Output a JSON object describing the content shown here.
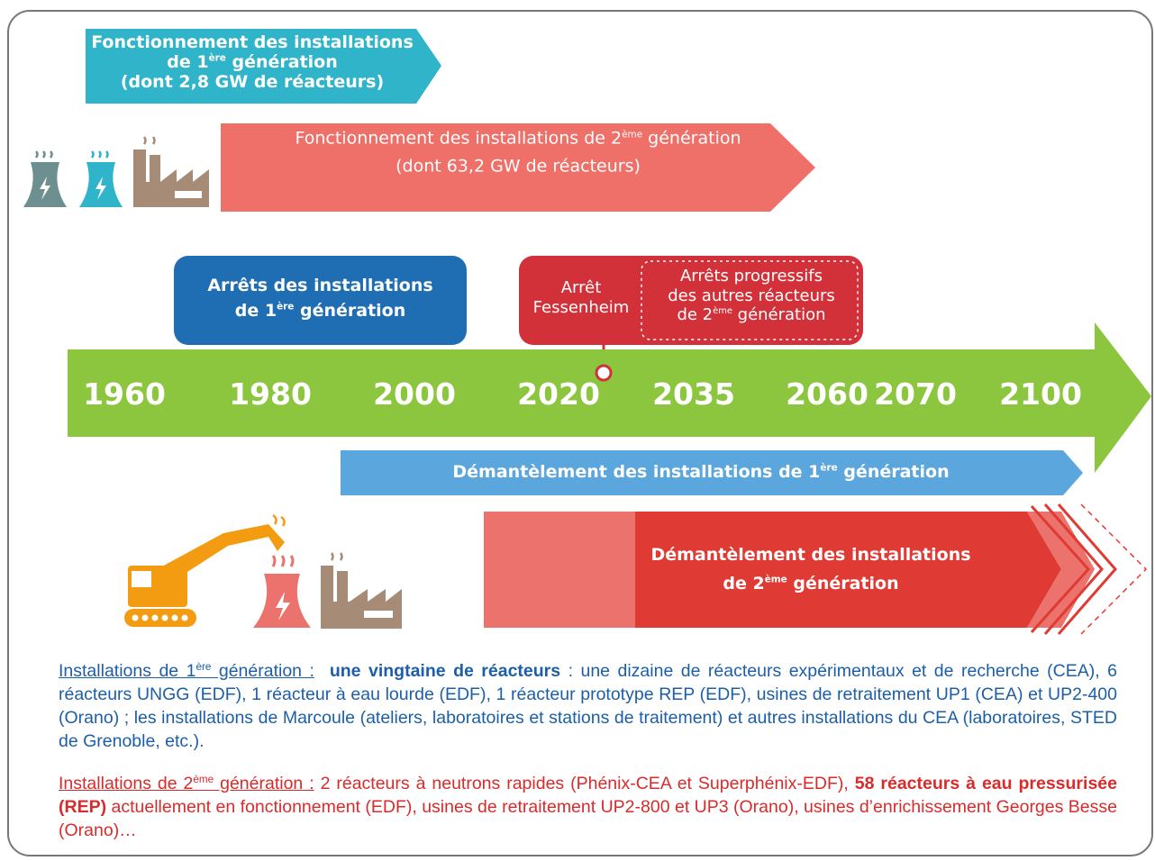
{
  "gen1_operation": {
    "line1": "Fonctionnement des installations",
    "line2": "de 1",
    "line2_sup": "ère",
    "line2_end": " génération",
    "line3": "(dont 2,8 GW de réacteurs)"
  },
  "gen2_operation": {
    "line1": "Fonctionnement des installations de 2",
    "line1_sup": "ème",
    "line1_end": " génération",
    "line2": "(dont 63,2 GW de réacteurs)"
  },
  "gen1_shutdown": {
    "line1": "Arrêts des installations",
    "line2": "de 1",
    "line2_sup": "ère",
    "line2_end": " génération"
  },
  "fessenheim": {
    "line1": "Arrêt",
    "line2": "Fessenheim"
  },
  "gen2_shutdown": {
    "line1": "Arrêts progressifs",
    "line2": "des autres réacteurs",
    "line3": "de 2",
    "line3_sup": "ème",
    "line3_end": " génération"
  },
  "timeline": {
    "years": [
      1960,
      1980,
      2000,
      2020,
      2035,
      2060,
      2070,
      2100
    ]
  },
  "gen1_dismantling": {
    "text": "Démantèlement des installations de 1",
    "sup": "ère",
    "end": " génération"
  },
  "gen2_dismantling": {
    "line1": "Démantèlement des installations",
    "line2": "de 2",
    "line2_sup": "ème",
    "line2_end": " génération"
  },
  "notes": [
    {
      "label": "Installations de 1",
      "label_sup": "ère",
      "label_end": " génération :",
      "highlight": "une vingtaine de réacteurs",
      "text": " : une dizaine de réacteurs expérimentaux et de recherche (CEA), 6 réacteurs UNGG (EDF), 1 réacteur à eau lourde (EDF), 1 réacteur prototype REP (EDF), usines de retraitement UP1 (CEA) et UP2-400 (Orano) ; les installations de Marcoule (ateliers, laboratoires et stations de traitement) et autres installations du CEA (laboratoires, STED de Grenoble, etc.)."
    },
    {
      "label": "Installations de 2",
      "label_sup": "ème",
      "label_end": " génération :",
      "text": " 2 réacteurs à neutrons rapides (Phénix-CEA et Superphénix-EDF),",
      "highlight": "58 réacteurs à eau pressurisée (REP)",
      "text_end": " actuellement en fonctionnement (EDF), usines de retraitement UP2-800 et UP3 (Orano), usines d’enrichissement Georges Besse (Orano)…"
    }
  ]
}
